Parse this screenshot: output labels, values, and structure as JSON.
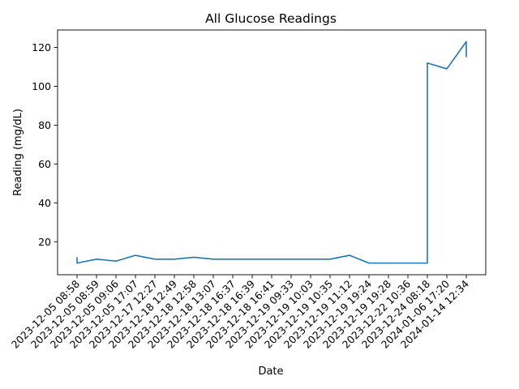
{
  "chart_data": {
    "type": "line",
    "title": "All Glucose Readings",
    "xlabel": "Date",
    "ylabel": "Reading (mg/dL)",
    "categories": [
      "2023-12-05 08:58",
      "2023-12-05 08:59",
      "2023-12-05 09:06",
      "2023-12-05 17:07",
      "2023-12-17 12:27",
      "2023-12-18 12:49",
      "2023-12-18 12:58",
      "2023-12-18 13:07",
      "2023-12-18 16:37",
      "2023-12-18 16:39",
      "2023-12-18 16:41",
      "2023-12-19 09:33",
      "2023-12-19 10:03",
      "2023-12-19 10:35",
      "2023-12-19 11:12",
      "2023-12-19 19:24",
      "2023-12-19 19:28",
      "2023-12-22 10:36",
      "2023-12-24 08:18",
      "2024-01-06 17:20",
      "2024-01-14 12:34"
    ],
    "points": [
      {
        "x": "2023-12-05 08:58",
        "y": 12
      },
      {
        "x": "2023-12-05 08:58",
        "y": 9
      },
      {
        "x": "2023-12-05 08:59",
        "y": 11
      },
      {
        "x": "2023-12-05 09:06",
        "y": 10
      },
      {
        "x": "2023-12-05 17:07",
        "y": 13
      },
      {
        "x": "2023-12-17 12:27",
        "y": 11
      },
      {
        "x": "2023-12-18 12:49",
        "y": 11
      },
      {
        "x": "2023-12-18 12:58",
        "y": 12
      },
      {
        "x": "2023-12-18 13:07",
        "y": 11
      },
      {
        "x": "2023-12-18 16:37",
        "y": 11
      },
      {
        "x": "2023-12-18 16:39",
        "y": 11
      },
      {
        "x": "2023-12-18 16:41",
        "y": 11
      },
      {
        "x": "2023-12-19 09:33",
        "y": 11
      },
      {
        "x": "2023-12-19 10:03",
        "y": 11
      },
      {
        "x": "2023-12-19 10:35",
        "y": 11
      },
      {
        "x": "2023-12-19 11:12",
        "y": 13
      },
      {
        "x": "2023-12-19 19:24",
        "y": 9
      },
      {
        "x": "2023-12-19 19:28",
        "y": 9
      },
      {
        "x": "2023-12-22 10:36",
        "y": 9
      },
      {
        "x": "2023-12-24 08:18",
        "y": 9
      },
      {
        "x": "2023-12-24 08:18",
        "y": 112
      },
      {
        "x": "2024-01-06 17:20",
        "y": 109
      },
      {
        "x": "2024-01-14 12:34",
        "y": 123
      },
      {
        "x": "2024-01-14 12:34",
        "y": 115
      }
    ],
    "ylim": [
      3,
      129
    ],
    "yticks": [
      20,
      40,
      60,
      80,
      100,
      120
    ],
    "line_color": "#1f77b4",
    "grid": false,
    "legend": "none"
  }
}
